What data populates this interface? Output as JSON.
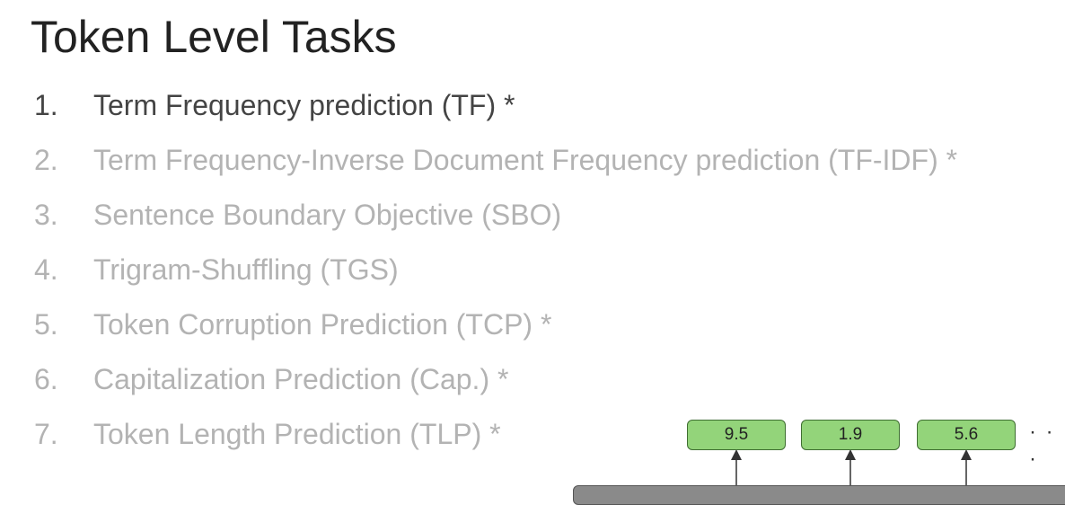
{
  "slide": {
    "title": "Token Level Tasks"
  },
  "tasks": [
    {
      "number": "1.",
      "label": "Term Frequency prediction (TF) *",
      "active": true
    },
    {
      "number": "2.",
      "label": "Term Frequency-Inverse Document Frequency prediction (TF-IDF) *",
      "active": false
    },
    {
      "number": "3.",
      "label": "Sentence Boundary Objective (SBO)",
      "active": false
    },
    {
      "number": "4.",
      "label": "Trigram-Shuffling  (TGS)",
      "active": false
    },
    {
      "number": "5.",
      "label": "Token Corruption Prediction (TCP) *",
      "active": false
    },
    {
      "number": "6.",
      "label": "Capitalization Prediction  (Cap.) *",
      "active": false
    },
    {
      "number": "7.",
      "label": "Token Length Prediction (TLP) *",
      "active": false
    }
  ],
  "diagram": {
    "outputs": [
      "9.5",
      "1.9",
      "5.6"
    ],
    "ellipsis": "· · ·"
  },
  "colors": {
    "active_text": "#444444",
    "inactive_text": "#b3b3b3",
    "box_fill": "#93d47a",
    "box_border": "#3f6e32"
  }
}
